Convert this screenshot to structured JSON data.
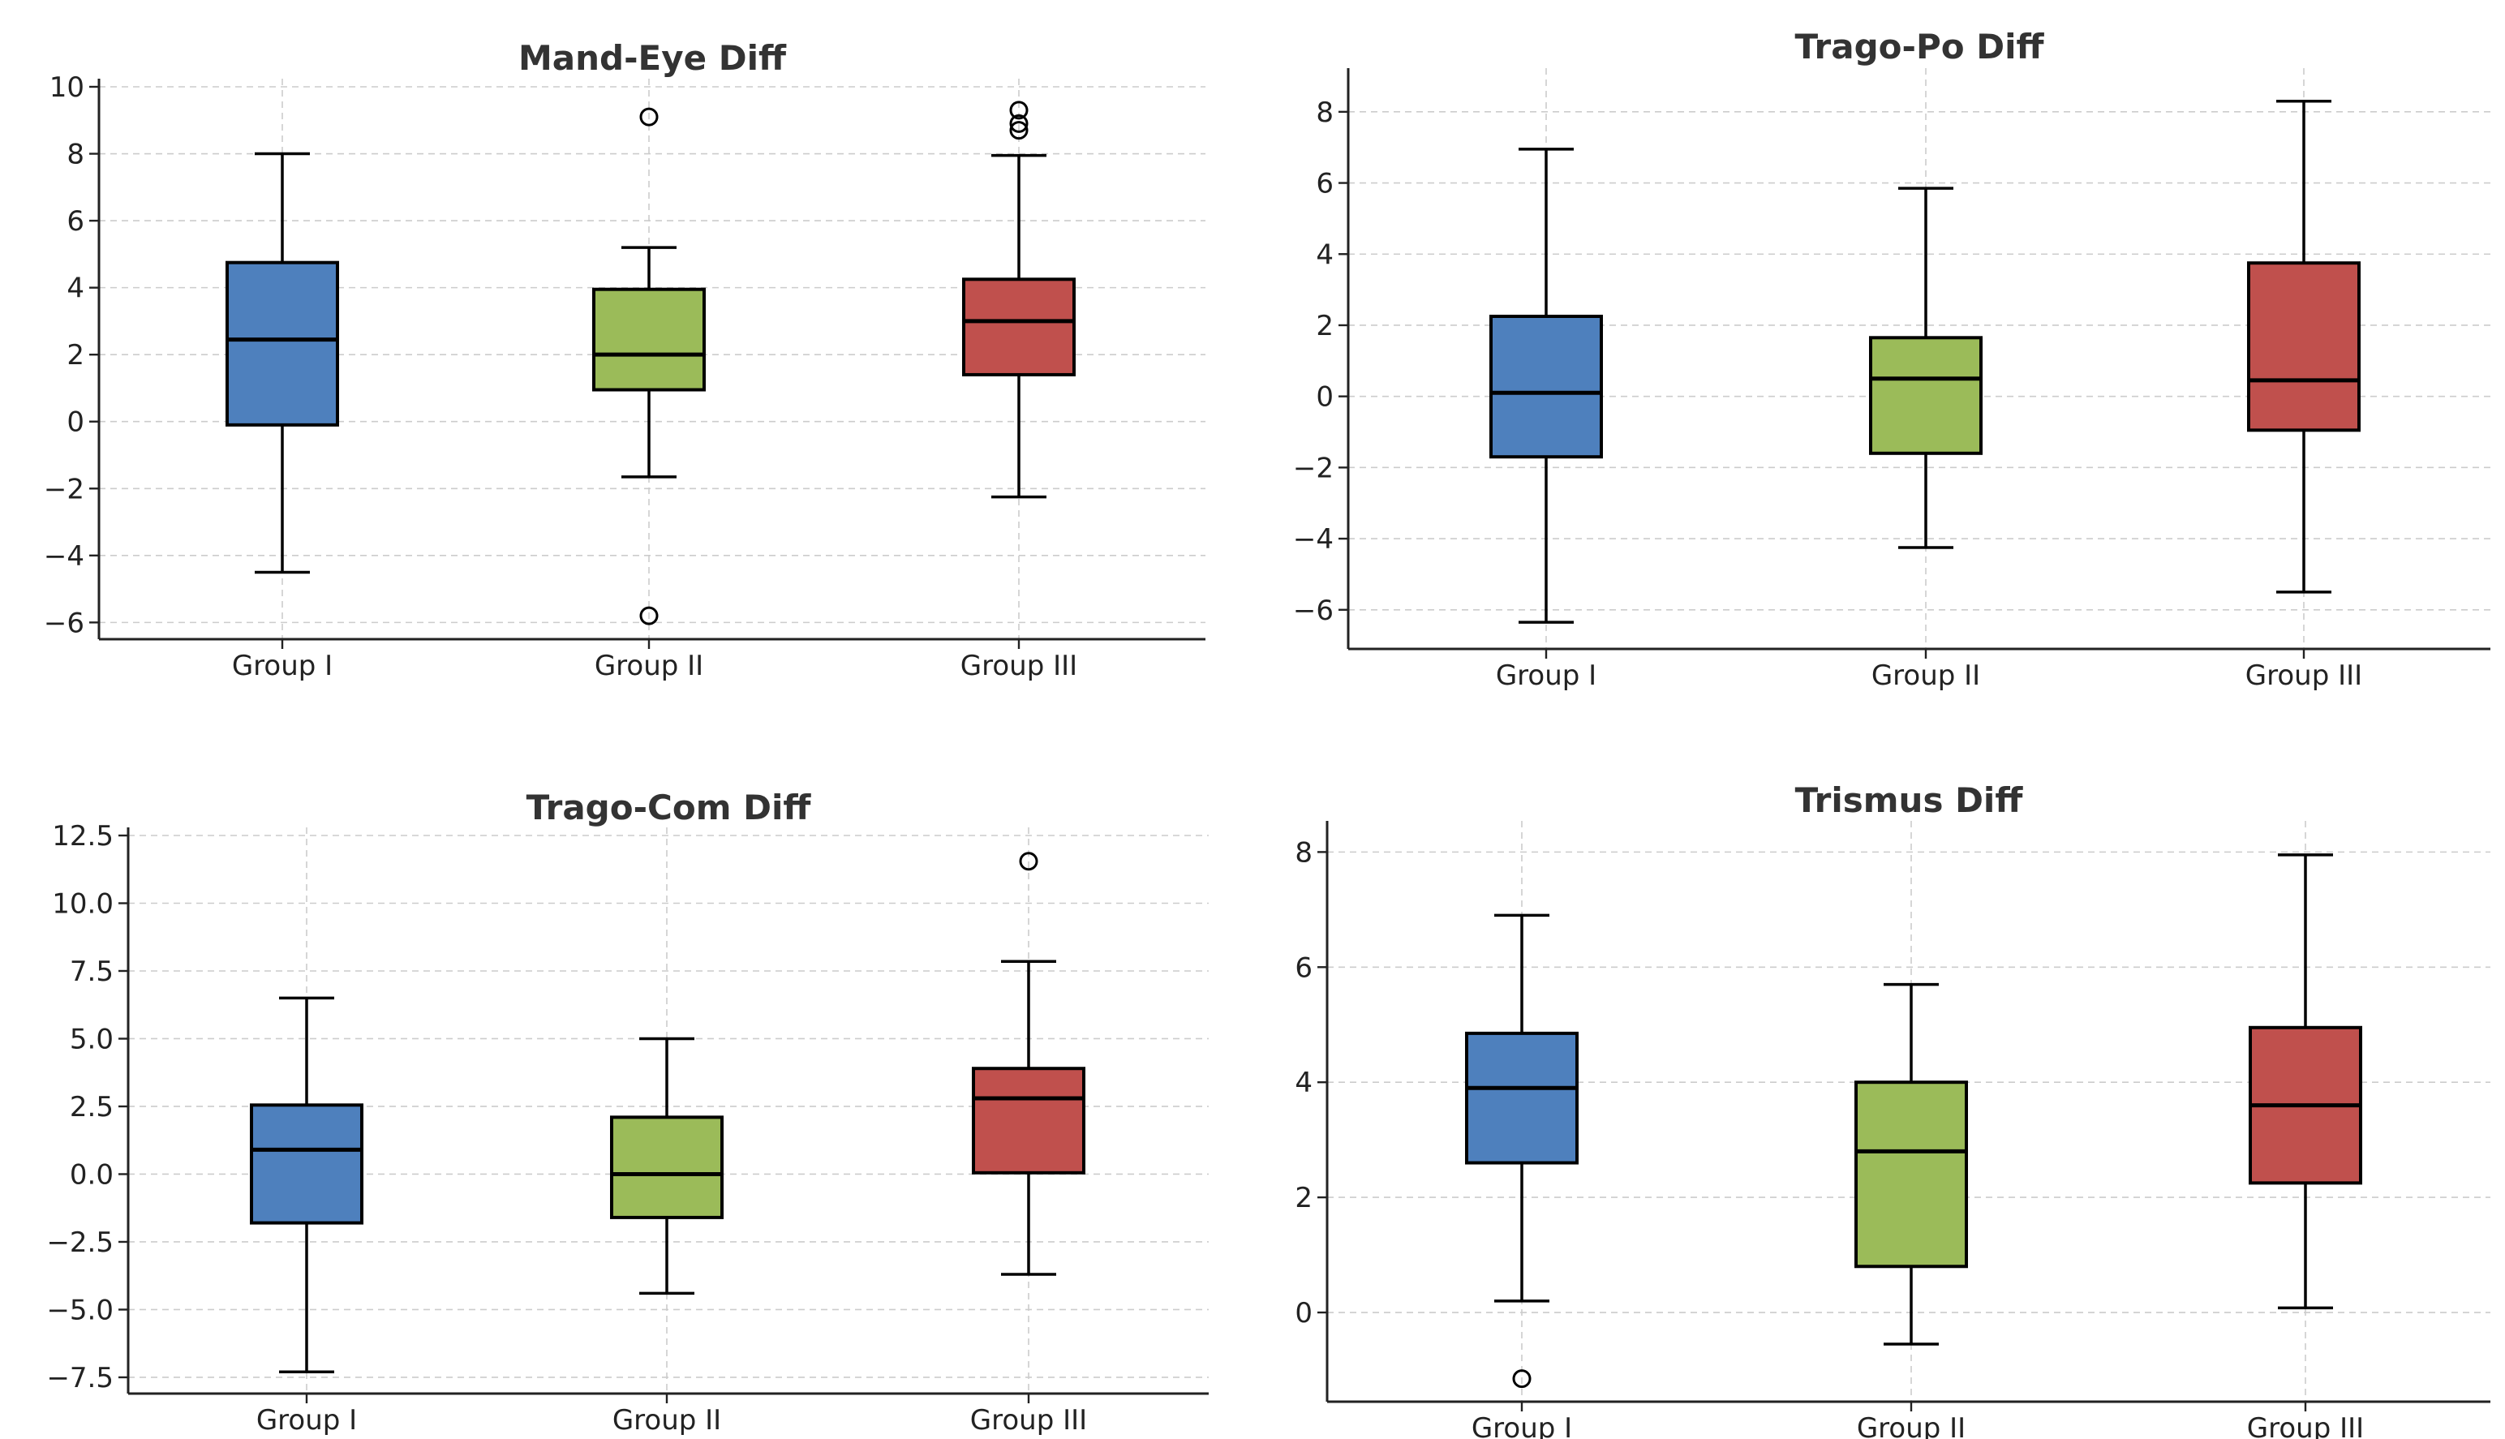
{
  "chart_data": [
    {
      "type": "box",
      "title": "Mand-Eye Diff",
      "categories": [
        "Group I",
        "Group II",
        "Group III"
      ],
      "colors": [
        "#4e80bd",
        "#9bbb59",
        "#c0504d"
      ],
      "ylim": [
        -6.5,
        10.0
      ],
      "yticks": [
        -6,
        -4,
        -2,
        0,
        2,
        4,
        6,
        8,
        10
      ],
      "ytick_labels": [
        "−6",
        "−4",
        "−2",
        "0",
        "2",
        "4",
        "6",
        "8",
        "10"
      ],
      "grid": true,
      "boxes": [
        {
          "whislo": -4.5,
          "q1": -0.1,
          "median": 2.45,
          "q3": 4.75,
          "whishi": 8.0,
          "fliers": []
        },
        {
          "whislo": -1.65,
          "q1": 0.95,
          "median": 2.0,
          "q3": 3.95,
          "whishi": 5.2,
          "fliers": [
            9.1,
            -5.8
          ]
        },
        {
          "whislo": -2.25,
          "q1": 1.4,
          "median": 3.0,
          "q3": 4.25,
          "whishi": 7.95,
          "fliers": [
            9.3,
            8.9,
            8.7
          ]
        }
      ]
    },
    {
      "type": "box",
      "title": "Trago-Po Diff",
      "categories": [
        "Group I",
        "Group II",
        "Group III"
      ],
      "colors": [
        "#4e80bd",
        "#9bbb59",
        "#c0504d"
      ],
      "ylim": [
        -7.1,
        9.0
      ],
      "yticks": [
        -6,
        -4,
        -2,
        0,
        2,
        4,
        6,
        8
      ],
      "ytick_labels": [
        "−6",
        "−4",
        "−2",
        "0",
        "2",
        "4",
        "6",
        "8"
      ],
      "grid": true,
      "boxes": [
        {
          "whislo": -6.35,
          "q1": -1.7,
          "median": 0.1,
          "q3": 2.25,
          "whishi": 6.95,
          "fliers": []
        },
        {
          "whislo": -4.25,
          "q1": -1.6,
          "median": 0.5,
          "q3": 1.65,
          "whishi": 5.85,
          "fliers": []
        },
        {
          "whislo": -5.5,
          "q1": -0.95,
          "median": 0.45,
          "q3": 3.75,
          "whishi": 8.3,
          "fliers": []
        }
      ]
    },
    {
      "type": "box",
      "title": "Trago-Com Diff",
      "categories": [
        "Group I",
        "Group II",
        "Group III"
      ],
      "colors": [
        "#4e80bd",
        "#9bbb59",
        "#c0504d"
      ],
      "ylim": [
        -8.1,
        12.5
      ],
      "yticks": [
        -7.5,
        -5.0,
        -2.5,
        0.0,
        2.5,
        5.0,
        7.5,
        10.0,
        12.5
      ],
      "ytick_labels": [
        "−7.5",
        "−5.0",
        "−2.5",
        "0.0",
        "2.5",
        "5.0",
        "7.5",
        "10.0",
        "12.5"
      ],
      "grid": true,
      "boxes": [
        {
          "whislo": -7.3,
          "q1": -1.8,
          "median": 0.9,
          "q3": 2.55,
          "whishi": 6.5,
          "fliers": []
        },
        {
          "whislo": -4.4,
          "q1": -1.6,
          "median": 0.0,
          "q3": 2.1,
          "whishi": 5.0,
          "fliers": []
        },
        {
          "whislo": -3.7,
          "q1": 0.05,
          "median": 2.8,
          "q3": 3.9,
          "whishi": 7.85,
          "fliers": [
            11.55
          ]
        }
      ]
    },
    {
      "type": "box",
      "title": "Trismus Diff",
      "categories": [
        "Group I",
        "Group II",
        "Group III"
      ],
      "colors": [
        "#4e80bd",
        "#9bbb59",
        "#c0504d"
      ],
      "ylim": [
        -1.55,
        8.4
      ],
      "yticks": [
        0,
        2,
        4,
        6,
        8
      ],
      "ytick_labels": [
        "0",
        "2",
        "4",
        "6",
        "8"
      ],
      "grid": true,
      "boxes": [
        {
          "whislo": 0.2,
          "q1": 2.6,
          "median": 3.9,
          "q3": 4.85,
          "whishi": 6.9,
          "fliers": [
            -1.15
          ]
        },
        {
          "whislo": -0.55,
          "q1": 0.8,
          "median": 2.8,
          "q3": 4.0,
          "whishi": 5.7,
          "fliers": []
        },
        {
          "whislo": 0.08,
          "q1": 2.25,
          "median": 3.6,
          "q3": 4.95,
          "whishi": 7.95,
          "fliers": []
        }
      ]
    }
  ]
}
